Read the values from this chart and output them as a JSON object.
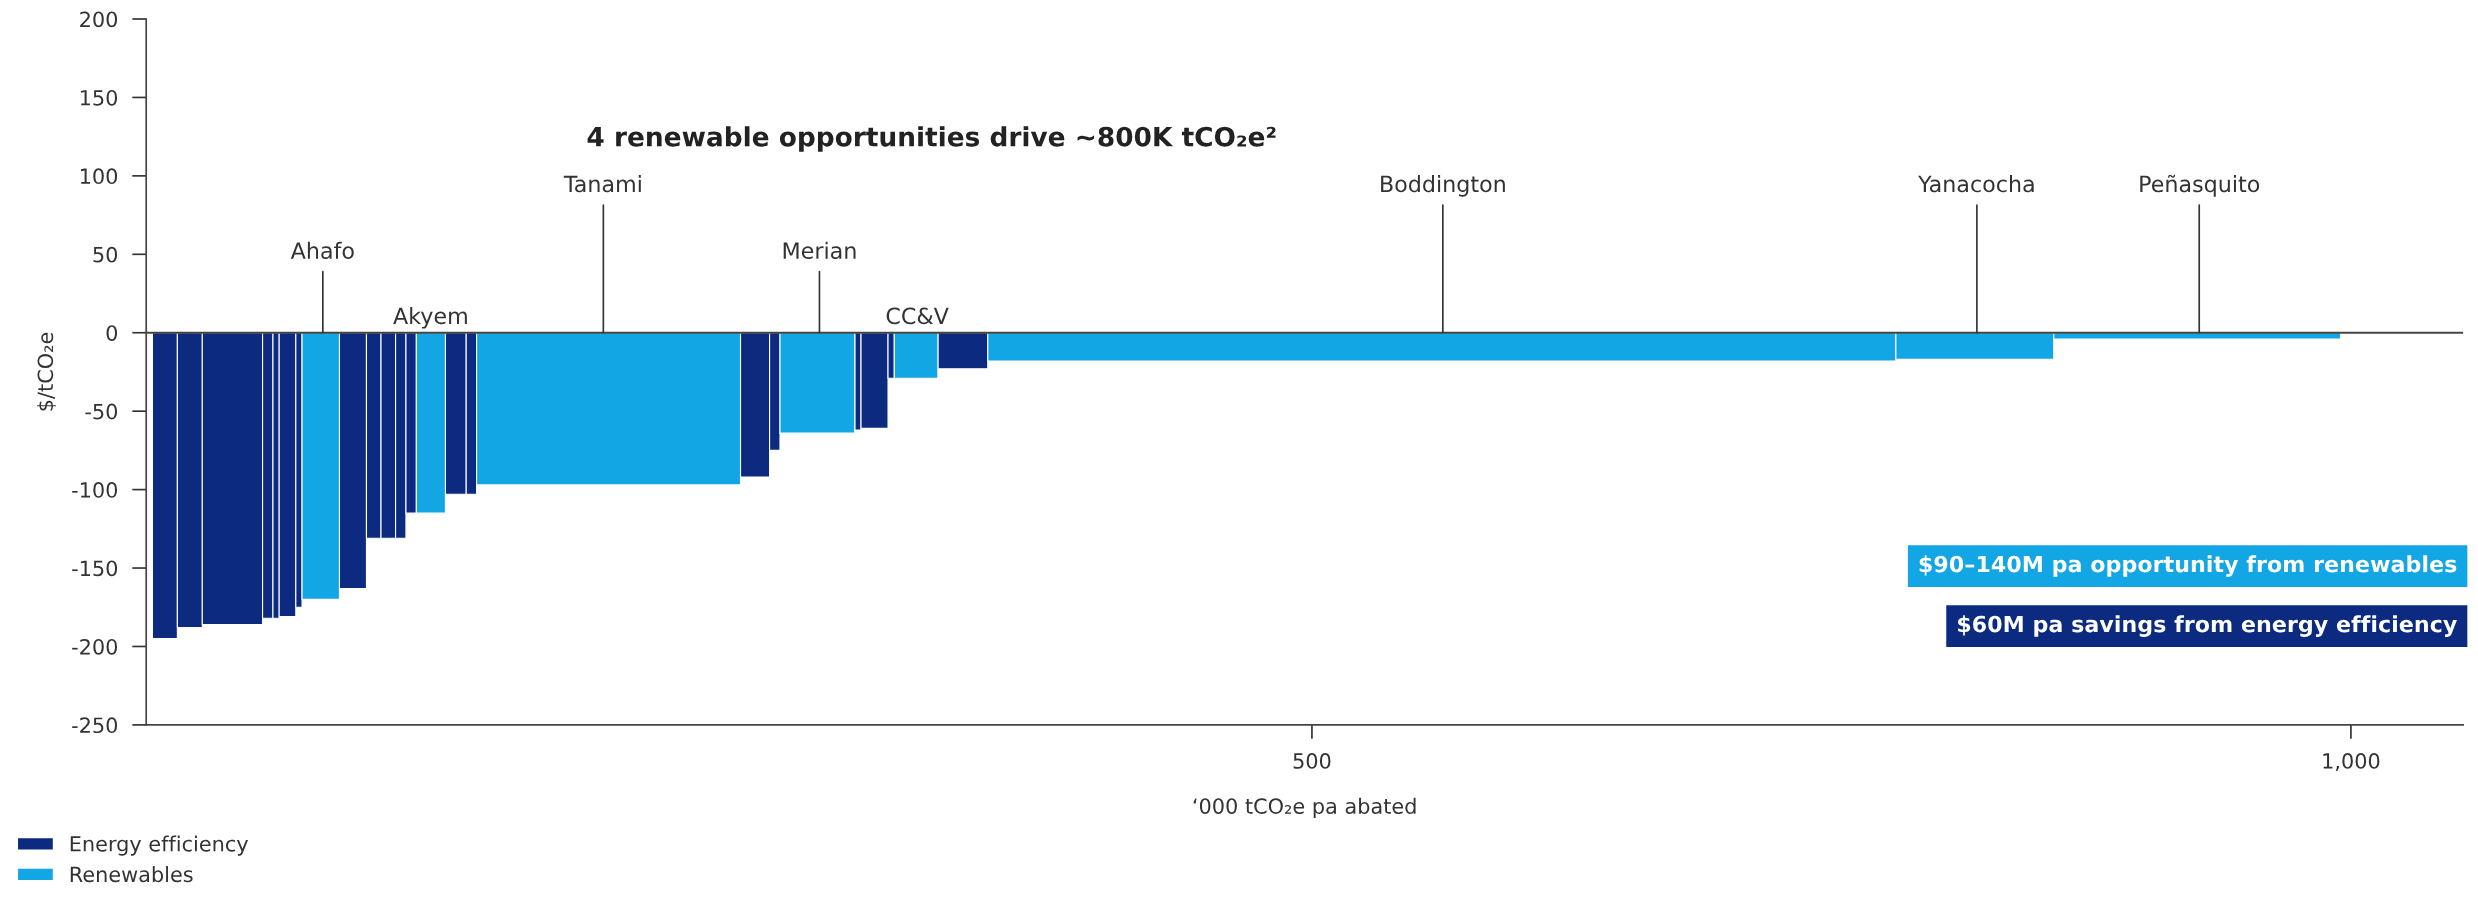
{
  "chart_data": {
    "type": "histogram",
    "title": "4 renewable opportunities drive ~800K tCO₂e²",
    "xlabel": "‘000 tCO₂e pa abated",
    "ylabel": "$/tCO₂e",
    "bins": [
      -58,
      -46,
      -34,
      -5,
      0,
      3,
      11,
      14,
      32,
      45,
      52,
      59,
      64,
      69,
      83,
      93,
      98,
      225,
      239,
      244,
      280,
      283,
      296,
      299,
      320,
      344,
      781,
      857,
      995
    ],
    "series": [
      {
        "name": "Energy efficiency",
        "color": "#0c2a80",
        "values": [
          -195,
          -188,
          -186,
          -182,
          -182,
          -181,
          -175,
          null,
          -163,
          -131,
          -131,
          -131,
          -115,
          null,
          -103,
          -103,
          null,
          -92,
          -75,
          null,
          -62,
          -61,
          -29,
          null,
          -23,
          null,
          null,
          null
        ]
      },
      {
        "name": "Renewables",
        "color": "#13a6e4",
        "values": [
          null,
          null,
          null,
          null,
          null,
          null,
          null,
          -170,
          null,
          null,
          null,
          null,
          null,
          -115,
          null,
          null,
          -97,
          null,
          null,
          -64,
          null,
          null,
          null,
          -29,
          null,
          -18,
          -17,
          -4
        ]
      }
    ],
    "annotations": [
      {
        "text": "Ahafo",
        "x": 24,
        "y": 0
      },
      {
        "text": "Akyem",
        "x": 76,
        "y": 0
      },
      {
        "text": "Tanami",
        "x": 159,
        "y": 0
      },
      {
        "text": "Merian",
        "x": 263,
        "y": 0
      },
      {
        "text": "CC&V",
        "x": 310,
        "y": 0
      },
      {
        "text": "Boddington",
        "x": 563,
        "y": 0
      },
      {
        "text": "Yanacocha",
        "x": 820,
        "y": 0
      },
      {
        "text": "Peñasquito",
        "x": 927,
        "y": 0
      },
      "$90–140M pa opportunity from renewables",
      "$60M pa savings from energy efficiency"
    ],
    "ref_lines": [
      {
        "axis": "y",
        "value": 0,
        "color": "#444444"
      }
    ],
    "xlim": [
      -61,
      1054
    ],
    "ylim": [
      -250,
      200
    ],
    "xticks": [
      500,
      {
        "value": 1000,
        "label": "1,000"
      }
    ],
    "yticks": [
      -250,
      -200,
      -150,
      -100,
      -50,
      0,
      50,
      100,
      150,
      200
    ],
    "legend": "bottom left",
    "grid": false
  }
}
